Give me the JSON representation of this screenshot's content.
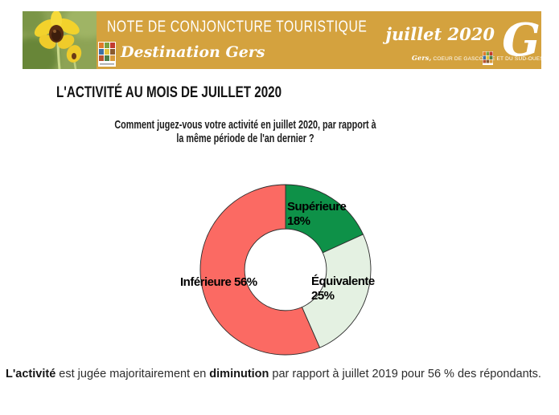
{
  "header": {
    "background_color": "#D4A23E",
    "note_title": "NOTE DE CONJONCTURE TOURISTIQUE",
    "brand_name": "Destination Gers",
    "issue_date": "juillet 2020",
    "tagline_script": "Gers,",
    "tagline_caps": " COEUR DE GASCOGNE ET DU SUD-OUEST",
    "g_monogram": "G",
    "photo_subject": "yellow bee orchid flower on green background"
  },
  "main": {
    "section_title": "L'ACTIVITÉ AU MOIS DE JUILLET 2020",
    "question_line1": "Comment jugez-vous votre activité en juillet 2020, par rapport à",
    "question_line2": "la même période de l'an dernier ?"
  },
  "chart_data": {
    "type": "pie",
    "subtype": "donut",
    "title": "Comment jugez-vous votre activité en juillet 2020, par rapport à la même période de l'an dernier ?",
    "categories": [
      "Supérieure",
      "Équivalente",
      "Inférieure"
    ],
    "values": [
      18,
      25,
      56
    ],
    "start_angle_deg": 0,
    "direction": "clockwise",
    "inner_radius_ratio": 0.48,
    "stroke_color": "#2b2b2b",
    "legend_position": "labels-on-chart",
    "slices": [
      {
        "name": "Supérieure",
        "value": 18,
        "pct_label": "18%",
        "color": "#0E9148"
      },
      {
        "name": "Équivalente",
        "value": 25,
        "pct_label": "25%",
        "color": "#E4F1E2"
      },
      {
        "name": "Inférieure",
        "value": 56,
        "pct_label": "56%",
        "color": "#FB6A63",
        "label_full": "Inférieure 56%"
      }
    ]
  },
  "footer": {
    "bold1": "L'activité",
    "mid": " est jugée majoritairement en ",
    "bold2": "diminution",
    "suffix": " par rapport à juillet 2019 pour 56 % des répondants."
  }
}
